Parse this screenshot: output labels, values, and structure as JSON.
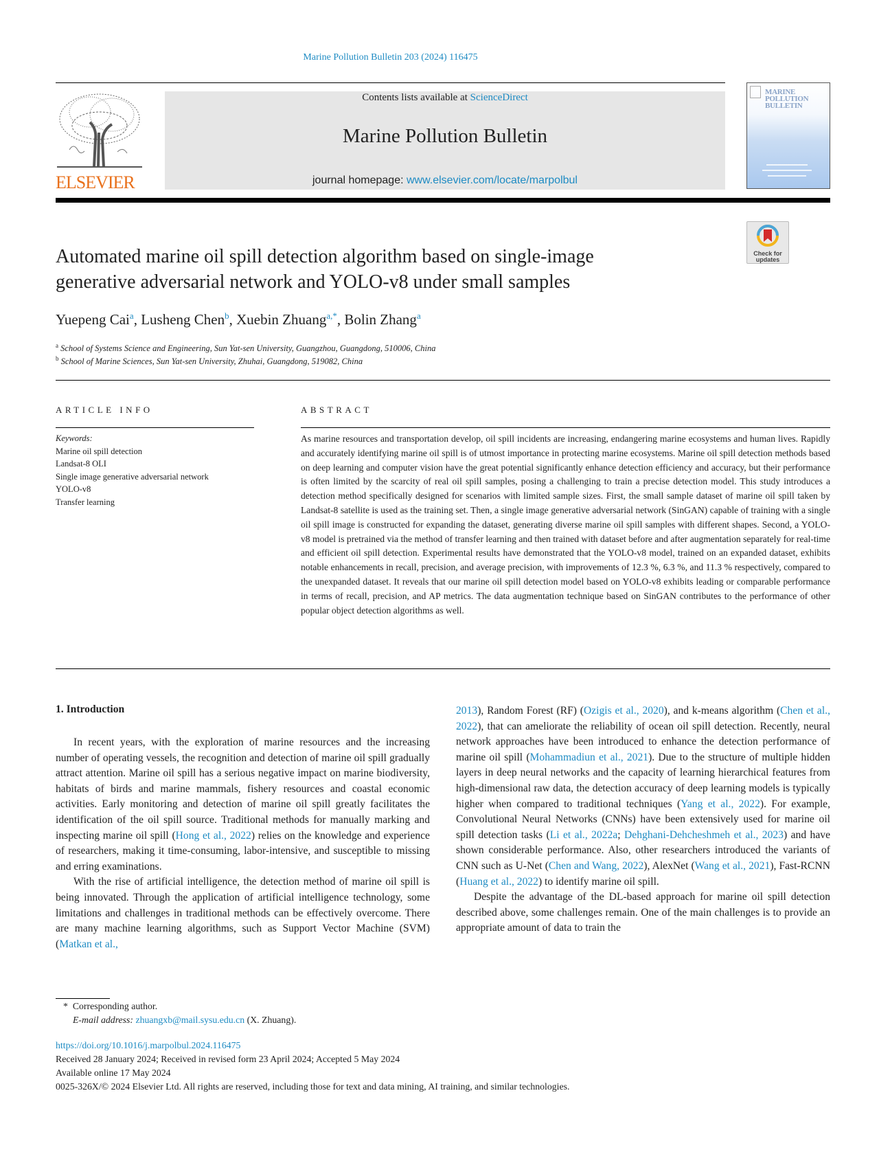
{
  "header": {
    "journal_ref": "Marine Pollution Bulletin 203 (2024) 116475",
    "contents_prefix": "Contents lists available at ",
    "contents_link": "ScienceDirect",
    "journal_title": "Marine Pollution Bulletin",
    "homepage_prefix": "journal homepage: ",
    "homepage_link": "www.elsevier.com/locate/marpolbul",
    "publisher_logo": "ELSEVIER",
    "cover_title": "MARINE POLLUTION BULLETIN",
    "check_updates": "Check for updates"
  },
  "colors": {
    "link": "#1e8bc3",
    "elsevier_orange": "#e9711c",
    "header_grey": "#e6e6e6"
  },
  "article": {
    "title_line1": "Automated marine oil spill detection algorithm based on single-image",
    "title_line2": "generative adversarial network and YOLO-v8 under small samples",
    "authors": [
      {
        "name": "Yuepeng Cai",
        "sup": "a",
        "sep": ", "
      },
      {
        "name": "Lusheng Chen",
        "sup": "b",
        "sep": ", "
      },
      {
        "name": "Xuebin Zhuang",
        "sup": "a,*",
        "sep": ", "
      },
      {
        "name": "Bolin Zhang",
        "sup": "a",
        "sep": ""
      }
    ],
    "affiliations": [
      {
        "sup": "a",
        "text": "School of Systems Science and Engineering, Sun Yat-sen University, Guangzhou, Guangdong, 510006, China"
      },
      {
        "sup": "b",
        "text": "School of Marine Sciences, Sun Yat-sen University, Zhuhai, Guangdong, 519082, China"
      }
    ]
  },
  "article_info": {
    "heading": "ARTICLE INFO",
    "keywords_label": "Keywords:",
    "keywords": [
      "Marine oil spill detection",
      "Landsat-8 OLI",
      "Single image generative adversarial network",
      "YOLO-v8",
      "Transfer learning"
    ]
  },
  "abstract": {
    "heading": "ABSTRACT",
    "text": "As marine resources and transportation develop, oil spill incidents are increasing, endangering marine ecosystems and human lives. Rapidly and accurately identifying marine oil spill is of utmost importance in protecting marine ecosystems. Marine oil spill detection methods based on deep learning and computer vision have the great potential significantly enhance detection efficiency and accuracy, but their performance is often limited by the scarcity of real oil spill samples, posing a challenging to train a precise detection model. This study introduces a detection method specifically designed for scenarios with limited sample sizes. First, the small sample dataset of marine oil spill taken by Landsat-8 satellite is used as the training set. Then, a single image generative adversarial network (SinGAN) capable of training with a single oil spill image is constructed for expanding the dataset, generating diverse marine oil spill samples with different shapes. Second, a YOLO-v8 model is pretrained via the method of transfer learning and then trained with dataset before and after augmentation separately for real-time and efficient oil spill detection. Experimental results have demonstrated that the YOLO-v8 model, trained on an expanded dataset, exhibits notable enhancements in recall, precision, and average precision, with improvements of 12.3 %, 6.3 %, and 11.3 % respectively, compared to the unexpanded dataset. It reveals that our marine oil spill detection model based on YOLO-v8 exhibits leading or comparable performance in terms of recall, precision, and AP metrics. The data augmentation technique based on SinGAN contributes to the performance of other popular object detection algorithms as well."
  },
  "body": {
    "section_heading": "1.  Introduction",
    "left_paragraphs": [
      [
        {
          "t": "In recent years, with the exploration of marine resources and the increasing number of operating vessels, the recognition and detection of marine oil spill gradually attract attention. Marine oil spill has a serious negative impact on marine biodiversity, habitats of birds and marine mammals, fishery resources and coastal economic activities. Early monitoring and detection of marine oil spill greatly facilitates the identification of the oil spill source. Traditional methods for manually marking and inspecting marine oil spill ("
        },
        {
          "t": "Hong et al., 2022",
          "link": true
        },
        {
          "t": ") relies on the knowledge and experience of researchers, making it time-consuming, labor-intensive, and susceptible to missing and erring examinations."
        }
      ],
      [
        {
          "t": "With the rise of artificial intelligence, the detection method of marine oil spill is being innovated. Through the application of artificial intelligence technology, some limitations and challenges in traditional methods can be effectively overcome. There are many machine learning algorithms, such as Support Vector Machine (SVM) ("
        },
        {
          "t": "Matkan et al.,",
          "link": true
        }
      ]
    ],
    "right_paragraphs": [
      [
        {
          "t": "2013",
          "link": true
        },
        {
          "t": "), Random Forest (RF) ("
        },
        {
          "t": "Ozigis et al., 2020",
          "link": true
        },
        {
          "t": "), and k-means algorithm ("
        },
        {
          "t": "Chen et al., 2022",
          "link": true
        },
        {
          "t": "), that can ameliorate the reliability of ocean oil spill detection. Recently, neural network approaches have been introduced to enhance the detection performance of marine oil spill ("
        },
        {
          "t": "Mohammadiun et al., 2021",
          "link": true
        },
        {
          "t": "). Due to the structure of multiple hidden layers in deep neural networks and the capacity of learning hierarchical features from high-dimensional raw data, the detection accuracy of deep learning models is typically higher when compared to traditional techniques ("
        },
        {
          "t": "Yang et al., 2022",
          "link": true
        },
        {
          "t": "). For example, Convolutional Neural Networks (CNNs) have been extensively used for marine oil spill detection tasks ("
        },
        {
          "t": "Li et al., 2022a",
          "link": true
        },
        {
          "t": "; "
        },
        {
          "t": "Dehghani-Dehcheshmeh et al., 2023",
          "link": true
        },
        {
          "t": ") and have shown considerable performance. Also, other researchers introduced the variants of CNN such as U-Net ("
        },
        {
          "t": "Chen and Wang, 2022",
          "link": true
        },
        {
          "t": "), AlexNet ("
        },
        {
          "t": "Wang et al., 2021",
          "link": true
        },
        {
          "t": "), Fast-RCNN ("
        },
        {
          "t": "Huang et al., 2022",
          "link": true
        },
        {
          "t": ") to identify marine oil spill."
        }
      ],
      [
        {
          "t": "Despite the advantage of the DL-based approach for marine oil spill detection described above, some challenges remain. One of the main challenges is to provide an appropriate amount of data to train the"
        }
      ]
    ]
  },
  "footnote": {
    "marker": "*",
    "corresponding": "Corresponding author.",
    "email_label": "E-mail address:",
    "email": "zhuangxb@mail.sysu.edu.cn",
    "email_owner": "(X. Zhuang)."
  },
  "footer": {
    "doi": "https://doi.org/10.1016/j.marpolbul.2024.116475",
    "received": "Received 28 January 2024; Received in revised form 23 April 2024; Accepted 5 May 2024",
    "available": "Available online 17 May 2024",
    "copyright": "0025-326X/© 2024 Elsevier Ltd. All rights are reserved, including those for text and data mining, AI training, and similar technologies."
  }
}
